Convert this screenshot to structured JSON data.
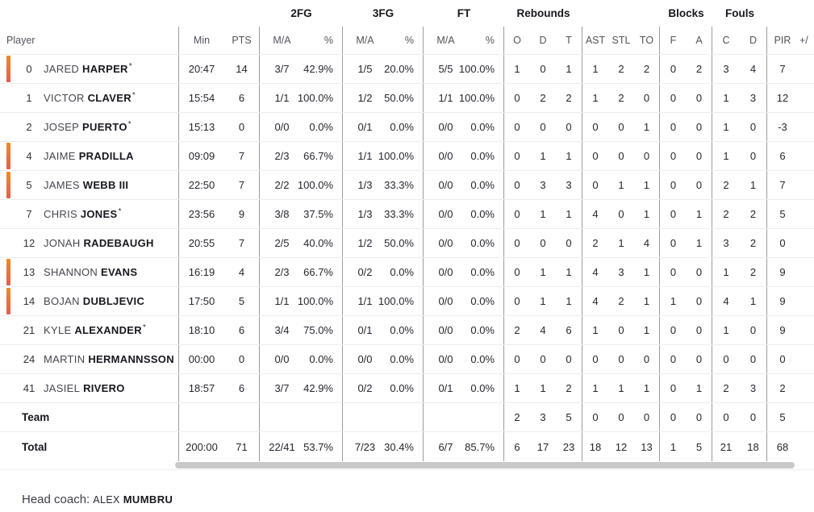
{
  "colors": {
    "on_court_bar_top": "#f18a1e",
    "on_court_bar_bottom": "#ea5b50",
    "scrollbar": "#c9c9c9",
    "column_separator": "#9c9ca3"
  },
  "table": {
    "group_headers": {
      "fg2": "2FG",
      "fg3": "3FG",
      "ft": "FT",
      "rebounds": "Rebounds",
      "blocks": "Blocks",
      "fouls": "Fouls"
    },
    "col_headers": {
      "player": "Player",
      "min": "Min",
      "pts": "PTS",
      "ma": "M/A",
      "pct": "%",
      "o": "O",
      "d": "D",
      "t": "T",
      "ast": "AST",
      "stl": "STL",
      "to": "TO",
      "block_f": "F",
      "block_a": "A",
      "foul_c": "C",
      "foul_d": "D",
      "pir": "PIR",
      "plusminus": "+/"
    },
    "players": [
      {
        "num": "0",
        "first": "JARED",
        "last": "HARPER",
        "starter": true,
        "on_court": true,
        "min": "20:47",
        "pts": "14",
        "fg2ma": "3/7",
        "fg2pct": "42.9%",
        "fg3ma": "1/5",
        "fg3pct": "20.0%",
        "ftma": "5/5",
        "ftpct": "100.0%",
        "ro": "1",
        "rd": "0",
        "rt": "1",
        "ast": "1",
        "stl": "2",
        "to": "2",
        "bf": "0",
        "ba": "2",
        "fc": "3",
        "fd": "4",
        "pir": "7",
        "pm": ""
      },
      {
        "num": "1",
        "first": "VICTOR",
        "last": "CLAVER",
        "starter": true,
        "on_court": false,
        "min": "15:54",
        "pts": "6",
        "fg2ma": "1/1",
        "fg2pct": "100.0%",
        "fg3ma": "1/2",
        "fg3pct": "50.0%",
        "ftma": "1/1",
        "ftpct": "100.0%",
        "ro": "0",
        "rd": "2",
        "rt": "2",
        "ast": "1",
        "stl": "2",
        "to": "0",
        "bf": "0",
        "ba": "0",
        "fc": "1",
        "fd": "3",
        "pir": "12",
        "pm": ""
      },
      {
        "num": "2",
        "first": "JOSEP",
        "last": "PUERTO",
        "starter": true,
        "on_court": false,
        "min": "15:13",
        "pts": "0",
        "fg2ma": "0/0",
        "fg2pct": "0.0%",
        "fg3ma": "0/1",
        "fg3pct": "0.0%",
        "ftma": "0/0",
        "ftpct": "0.0%",
        "ro": "0",
        "rd": "0",
        "rt": "0",
        "ast": "0",
        "stl": "0",
        "to": "1",
        "bf": "0",
        "ba": "0",
        "fc": "1",
        "fd": "0",
        "pir": "-3",
        "pm": ""
      },
      {
        "num": "4",
        "first": "JAIME",
        "last": "PRADILLA",
        "starter": false,
        "on_court": true,
        "min": "09:09",
        "pts": "7",
        "fg2ma": "2/3",
        "fg2pct": "66.7%",
        "fg3ma": "1/1",
        "fg3pct": "100.0%",
        "ftma": "0/0",
        "ftpct": "0.0%",
        "ro": "0",
        "rd": "1",
        "rt": "1",
        "ast": "0",
        "stl": "0",
        "to": "0",
        "bf": "0",
        "ba": "0",
        "fc": "1",
        "fd": "0",
        "pir": "6",
        "pm": ""
      },
      {
        "num": "5",
        "first": "JAMES",
        "last": "WEBB III",
        "starter": false,
        "on_court": true,
        "min": "22:50",
        "pts": "7",
        "fg2ma": "2/2",
        "fg2pct": "100.0%",
        "fg3ma": "1/3",
        "fg3pct": "33.3%",
        "ftma": "0/0",
        "ftpct": "0.0%",
        "ro": "0",
        "rd": "3",
        "rt": "3",
        "ast": "0",
        "stl": "1",
        "to": "1",
        "bf": "0",
        "ba": "0",
        "fc": "2",
        "fd": "1",
        "pir": "7",
        "pm": ""
      },
      {
        "num": "7",
        "first": "CHRIS",
        "last": "JONES",
        "starter": true,
        "on_court": false,
        "min": "23:56",
        "pts": "9",
        "fg2ma": "3/8",
        "fg2pct": "37.5%",
        "fg3ma": "1/3",
        "fg3pct": "33.3%",
        "ftma": "0/0",
        "ftpct": "0.0%",
        "ro": "0",
        "rd": "1",
        "rt": "1",
        "ast": "4",
        "stl": "0",
        "to": "1",
        "bf": "0",
        "ba": "1",
        "fc": "2",
        "fd": "2",
        "pir": "5",
        "pm": ""
      },
      {
        "num": "12",
        "first": "JONAH",
        "last": "RADEBAUGH",
        "starter": false,
        "on_court": false,
        "min": "20:55",
        "pts": "7",
        "fg2ma": "2/5",
        "fg2pct": "40.0%",
        "fg3ma": "1/2",
        "fg3pct": "50.0%",
        "ftma": "0/0",
        "ftpct": "0.0%",
        "ro": "0",
        "rd": "0",
        "rt": "0",
        "ast": "2",
        "stl": "1",
        "to": "4",
        "bf": "0",
        "ba": "1",
        "fc": "3",
        "fd": "2",
        "pir": "0",
        "pm": ""
      },
      {
        "num": "13",
        "first": "SHANNON",
        "last": "EVANS",
        "starter": false,
        "on_court": true,
        "min": "16:19",
        "pts": "4",
        "fg2ma": "2/3",
        "fg2pct": "66.7%",
        "fg3ma": "0/2",
        "fg3pct": "0.0%",
        "ftma": "0/0",
        "ftpct": "0.0%",
        "ro": "0",
        "rd": "1",
        "rt": "1",
        "ast": "4",
        "stl": "3",
        "to": "1",
        "bf": "0",
        "ba": "0",
        "fc": "1",
        "fd": "2",
        "pir": "9",
        "pm": ""
      },
      {
        "num": "14",
        "first": "BOJAN",
        "last": "DUBLJEVIC",
        "starter": false,
        "on_court": true,
        "min": "17:50",
        "pts": "5",
        "fg2ma": "1/1",
        "fg2pct": "100.0%",
        "fg3ma": "1/1",
        "fg3pct": "100.0%",
        "ftma": "0/0",
        "ftpct": "0.0%",
        "ro": "0",
        "rd": "1",
        "rt": "1",
        "ast": "4",
        "stl": "2",
        "to": "1",
        "bf": "1",
        "ba": "0",
        "fc": "4",
        "fd": "1",
        "pir": "9",
        "pm": ""
      },
      {
        "num": "21",
        "first": "KYLE",
        "last": "ALEXANDER",
        "starter": true,
        "on_court": false,
        "min": "18:10",
        "pts": "6",
        "fg2ma": "3/4",
        "fg2pct": "75.0%",
        "fg3ma": "0/1",
        "fg3pct": "0.0%",
        "ftma": "0/0",
        "ftpct": "0.0%",
        "ro": "2",
        "rd": "4",
        "rt": "6",
        "ast": "1",
        "stl": "0",
        "to": "1",
        "bf": "0",
        "ba": "0",
        "fc": "1",
        "fd": "0",
        "pir": "9",
        "pm": ""
      },
      {
        "num": "24",
        "first": "MARTIN",
        "last": "HERMANNSSON",
        "starter": false,
        "on_court": false,
        "min": "00:00",
        "pts": "0",
        "fg2ma": "0/0",
        "fg2pct": "0.0%",
        "fg3ma": "0/0",
        "fg3pct": "0.0%",
        "ftma": "0/0",
        "ftpct": "0.0%",
        "ro": "0",
        "rd": "0",
        "rt": "0",
        "ast": "0",
        "stl": "0",
        "to": "0",
        "bf": "0",
        "ba": "0",
        "fc": "0",
        "fd": "0",
        "pir": "0",
        "pm": ""
      },
      {
        "num": "41",
        "first": "JASIEL",
        "last": "RIVERO",
        "starter": false,
        "on_court": false,
        "min": "18:57",
        "pts": "6",
        "fg2ma": "3/7",
        "fg2pct": "42.9%",
        "fg3ma": "0/2",
        "fg3pct": "0.0%",
        "ftma": "0/1",
        "ftpct": "0.0%",
        "ro": "1",
        "rd": "1",
        "rt": "2",
        "ast": "1",
        "stl": "1",
        "to": "1",
        "bf": "0",
        "ba": "1",
        "fc": "2",
        "fd": "3",
        "pir": "2",
        "pm": ""
      }
    ],
    "team_row": {
      "label": "Team",
      "min": "",
      "pts": "",
      "fg2ma": "",
      "fg2pct": "",
      "fg3ma": "",
      "fg3pct": "",
      "ftma": "",
      "ftpct": "",
      "ro": "2",
      "rd": "3",
      "rt": "5",
      "ast": "0",
      "stl": "0",
      "to": "0",
      "bf": "0",
      "ba": "0",
      "fc": "0",
      "fd": "0",
      "pir": "5",
      "pm": ""
    },
    "total_row": {
      "label": "Total",
      "min": "200:00",
      "pts": "71",
      "fg2ma": "22/41",
      "fg2pct": "53.7%",
      "fg3ma": "7/23",
      "fg3pct": "30.4%",
      "ftma": "6/7",
      "ftpct": "85.7%",
      "ro": "6",
      "rd": "17",
      "rt": "23",
      "ast": "18",
      "stl": "12",
      "to": "13",
      "bf": "1",
      "ba": "5",
      "fc": "21",
      "fd": "18",
      "pir": "68",
      "pm": ""
    }
  },
  "footer": {
    "head_coach_label": "Head coach:",
    "coach_first": "ALEX",
    "coach_last": "MUMBRU"
  }
}
